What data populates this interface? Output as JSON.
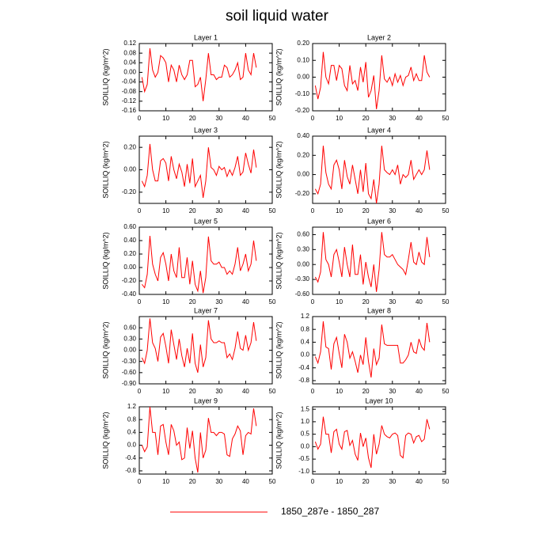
{
  "title": "soil liquid water",
  "legend": {
    "label": "1850_287e - 1850_287",
    "color": "#ff0000"
  },
  "chart_data": [
    {
      "type": "line",
      "title": "Layer 1",
      "ylabel": "SOILLIQ  (kg/m^2)",
      "color": "#ff0000",
      "x": [
        1,
        2,
        3,
        4,
        5,
        6,
        7,
        8,
        9,
        10,
        11,
        12,
        13,
        14,
        15,
        16,
        17,
        18,
        19,
        20,
        21,
        22,
        23,
        24,
        25,
        26,
        27,
        28,
        29,
        30,
        31,
        32,
        33,
        34,
        35,
        36,
        37,
        38,
        39,
        40,
        41,
        42,
        43,
        44
      ],
      "values": [
        -0.02,
        -0.08,
        -0.05,
        0.1,
        0.01,
        -0.02,
        0.0,
        0.07,
        0.06,
        0.04,
        -0.04,
        0.03,
        0.01,
        -0.04,
        0.03,
        -0.01,
        -0.03,
        -0.01,
        0.05,
        0.05,
        -0.06,
        -0.05,
        -0.02,
        -0.12,
        -0.03,
        0.08,
        -0.01,
        -0.01,
        -0.03,
        -0.02,
        -0.02,
        0.03,
        0.02,
        -0.02,
        -0.01,
        0.01,
        0.04,
        -0.03,
        -0.02,
        0.08,
        0.01,
        -0.01,
        0.08,
        0.02
      ],
      "xlim": [
        0,
        50
      ],
      "xticks": [
        0,
        10,
        20,
        30,
        40,
        50
      ],
      "ylim": [
        -0.16,
        0.12
      ],
      "yticks": [
        -0.16,
        -0.12,
        -0.08,
        -0.04,
        {
          "value": 0,
          "label": "0.00"
        },
        0.04,
        0.08,
        0.12
      ]
    },
    {
      "type": "line",
      "title": "Layer 2",
      "ylabel": "SOILLIQ  (kg/m^2)",
      "color": "#ff0000",
      "x": [
        1,
        2,
        3,
        4,
        5,
        6,
        7,
        8,
        9,
        10,
        11,
        12,
        13,
        14,
        15,
        16,
        17,
        18,
        19,
        20,
        21,
        22,
        23,
        24,
        25,
        26,
        27,
        28,
        29,
        30,
        31,
        32,
        33,
        34,
        35,
        36,
        37,
        38,
        39,
        40,
        41,
        42,
        43,
        44
      ],
      "values": [
        -0.05,
        -0.13,
        -0.06,
        0.15,
        0.0,
        -0.04,
        0.07,
        0.07,
        -0.02,
        0.07,
        0.05,
        -0.05,
        -0.08,
        0.07,
        -0.04,
        -0.02,
        -0.08,
        0.06,
        -0.03,
        0.09,
        -0.12,
        -0.08,
        0.01,
        -0.19,
        -0.08,
        0.13,
        -0.01,
        -0.03,
        0.0,
        -0.05,
        0.02,
        -0.03,
        0.01,
        -0.05,
        0.0,
        0.01,
        0.06,
        -0.02,
        0.02,
        -0.02,
        -0.02,
        0.13,
        0.03,
        0.0
      ],
      "xlim": [
        0,
        50
      ],
      "xticks": [
        0,
        10,
        20,
        30,
        40,
        50
      ],
      "ylim": [
        -0.2,
        0.2
      ],
      "yticks": [
        {
          "value": -0.2,
          "label": "-0.20"
        },
        {
          "value": -0.1,
          "label": "-0.10"
        },
        {
          "value": 0,
          "label": "0.00"
        },
        {
          "value": 0.1,
          "label": "0.10"
        },
        {
          "value": 0.2,
          "label": "0.20"
        }
      ]
    },
    {
      "type": "line",
      "title": "Layer 3",
      "ylabel": "SOILLIQ  (kg/m^2)",
      "color": "#ff0000",
      "x": [
        1,
        2,
        3,
        4,
        5,
        6,
        7,
        8,
        9,
        10,
        11,
        12,
        13,
        14,
        15,
        16,
        17,
        18,
        19,
        20,
        21,
        22,
        23,
        24,
        25,
        26,
        27,
        28,
        29,
        30,
        31,
        32,
        33,
        34,
        35,
        36,
        37,
        38,
        39,
        40,
        41,
        42,
        43,
        44
      ],
      "values": [
        -0.1,
        -0.15,
        -0.05,
        0.23,
        0.0,
        -0.1,
        -0.1,
        0.08,
        0.1,
        0.06,
        -0.1,
        0.12,
        0.0,
        -0.08,
        0.05,
        -0.02,
        -0.15,
        0.05,
        -0.12,
        0.1,
        -0.15,
        -0.1,
        -0.05,
        -0.25,
        -0.1,
        0.2,
        0.02,
        0.0,
        -0.05,
        0.03,
        0.0,
        0.02,
        -0.06,
        0.0,
        -0.05,
        0.02,
        0.12,
        -0.05,
        -0.02,
        0.15,
        0.05,
        -0.03,
        0.18,
        0.02
      ],
      "xlim": [
        0,
        50
      ],
      "xticks": [
        0,
        10,
        20,
        30,
        40,
        50
      ],
      "ylim": [
        -0.3,
        0.3
      ],
      "yticks": [
        {
          "value": -0.2,
          "label": "-0.20"
        },
        {
          "value": 0,
          "label": "0.00"
        },
        {
          "value": 0.2,
          "label": "0.20"
        }
      ]
    },
    {
      "type": "line",
      "title": "Layer 4",
      "ylabel": "SOILLIQ  (kg/m^2)",
      "color": "#ff0000",
      "x": [
        1,
        2,
        3,
        4,
        5,
        6,
        7,
        8,
        9,
        10,
        11,
        12,
        13,
        14,
        15,
        16,
        17,
        18,
        19,
        20,
        21,
        22,
        23,
        24,
        25,
        26,
        27,
        28,
        29,
        30,
        31,
        32,
        33,
        34,
        35,
        36,
        37,
        38,
        39,
        40,
        41,
        42,
        43,
        44
      ],
      "values": [
        -0.15,
        -0.2,
        -0.1,
        0.3,
        0.02,
        -0.1,
        -0.15,
        0.1,
        0.15,
        0.05,
        -0.15,
        0.15,
        -0.02,
        -0.1,
        0.1,
        -0.05,
        -0.2,
        0.05,
        -0.18,
        0.12,
        -0.2,
        -0.25,
        -0.05,
        -0.3,
        -0.1,
        0.3,
        0.05,
        0.02,
        0.0,
        0.05,
        0.0,
        0.1,
        -0.1,
        0.0,
        -0.03,
        0.0,
        0.15,
        -0.05,
        0.0,
        0.05,
        0.0,
        0.05,
        0.25,
        0.05
      ],
      "xlim": [
        0,
        50
      ],
      "xticks": [
        0,
        10,
        20,
        30,
        40,
        50
      ],
      "ylim": [
        -0.3,
        0.4
      ],
      "yticks": [
        {
          "value": -0.2,
          "label": "-0.20"
        },
        {
          "value": 0,
          "label": "0.00"
        },
        {
          "value": 0.2,
          "label": "0.20"
        },
        {
          "value": 0.4,
          "label": "0.40"
        }
      ]
    },
    {
      "type": "line",
      "title": "Layer 5",
      "ylabel": "SOILLIQ  (kg/m^2)",
      "color": "#ff0000",
      "x": [
        1,
        2,
        3,
        4,
        5,
        6,
        7,
        8,
        9,
        10,
        11,
        12,
        13,
        14,
        15,
        16,
        17,
        18,
        19,
        20,
        21,
        22,
        23,
        24,
        25,
        26,
        27,
        28,
        29,
        30,
        31,
        32,
        33,
        34,
        35,
        36,
        37,
        38,
        39,
        40,
        41,
        42,
        43,
        44
      ],
      "values": [
        -0.25,
        -0.3,
        -0.1,
        0.47,
        0.05,
        -0.1,
        -0.2,
        0.15,
        0.22,
        0.05,
        -0.2,
        0.2,
        -0.05,
        -0.15,
        0.3,
        -0.15,
        -0.15,
        0.15,
        -0.25,
        0.1,
        -0.25,
        -0.35,
        -0.05,
        -0.38,
        -0.15,
        0.46,
        0.1,
        0.05,
        0.05,
        0.08,
        0.0,
        0.0,
        -0.1,
        -0.05,
        -0.1,
        0.05,
        0.3,
        -0.05,
        0.05,
        0.2,
        -0.05,
        0.05,
        0.4,
        0.1
      ],
      "xlim": [
        0,
        50
      ],
      "xticks": [
        0,
        10,
        20,
        30,
        40,
        50
      ],
      "ylim": [
        -0.4,
        0.6
      ],
      "yticks": [
        {
          "value": -0.4,
          "label": "-0.40"
        },
        {
          "value": -0.2,
          "label": "-0.20"
        },
        {
          "value": 0,
          "label": "0.00"
        },
        {
          "value": 0.2,
          "label": "0.20"
        },
        {
          "value": 0.4,
          "label": "0.40"
        },
        {
          "value": 0.6,
          "label": "0.60"
        }
      ]
    },
    {
      "type": "line",
      "title": "Layer 6",
      "ylabel": "SOILLIQ  (kg/m^2)",
      "color": "#ff0000",
      "x": [
        1,
        2,
        3,
        4,
        5,
        6,
        7,
        8,
        9,
        10,
        11,
        12,
        13,
        14,
        15,
        16,
        17,
        18,
        19,
        20,
        21,
        22,
        23,
        24,
        25,
        26,
        27,
        28,
        29,
        30,
        31,
        32,
        33,
        34,
        35,
        36,
        37,
        38,
        39,
        40,
        41,
        42,
        43,
        44
      ],
      "values": [
        -0.25,
        -0.35,
        -0.15,
        0.65,
        0.1,
        0.0,
        -0.25,
        0.2,
        0.3,
        0.05,
        -0.25,
        0.35,
        0.0,
        -0.25,
        0.4,
        -0.2,
        -0.2,
        0.2,
        -0.4,
        0.05,
        -0.25,
        -0.45,
        0.0,
        -0.55,
        -0.1,
        0.65,
        0.2,
        0.15,
        0.15,
        0.2,
        0.1,
        0.0,
        -0.05,
        -0.1,
        -0.2,
        0.1,
        0.45,
        0.05,
        0.0,
        0.25,
        0.05,
        0.0,
        0.55,
        0.15
      ],
      "xlim": [
        0,
        50
      ],
      "xticks": [
        0,
        10,
        20,
        30,
        40,
        50
      ],
      "ylim": [
        -0.6,
        0.75
      ],
      "yticks": [
        {
          "value": -0.6,
          "label": "-0.60"
        },
        {
          "value": -0.3,
          "label": "-0.30"
        },
        {
          "value": 0,
          "label": "0.00"
        },
        {
          "value": 0.3,
          "label": "0.30"
        },
        {
          "value": 0.6,
          "label": "0.60"
        }
      ]
    },
    {
      "type": "line",
      "title": "Layer 7",
      "ylabel": "SOILLIQ  (kg/m^2)",
      "color": "#ff0000",
      "x": [
        1,
        2,
        3,
        4,
        5,
        6,
        7,
        8,
        9,
        10,
        11,
        12,
        13,
        14,
        15,
        16,
        17,
        18,
        19,
        20,
        21,
        22,
        23,
        24,
        25,
        26,
        27,
        28,
        29,
        30,
        31,
        32,
        33,
        34,
        35,
        36,
        37,
        38,
        39,
        40,
        41,
        42,
        43,
        44
      ],
      "values": [
        -0.2,
        -0.35,
        0.0,
        0.85,
        0.2,
        0.05,
        -0.3,
        0.35,
        0.45,
        0.1,
        -0.35,
        0.55,
        0.15,
        -0.25,
        0.3,
        -0.15,
        -0.45,
        0.05,
        -0.35,
        0.45,
        -0.35,
        -0.6,
        0.15,
        -0.45,
        -0.2,
        0.8,
        0.3,
        0.2,
        0.2,
        0.25,
        0.2,
        0.2,
        -0.2,
        -0.1,
        -0.25,
        0.05,
        0.5,
        0.05,
        0.0,
        0.4,
        0.0,
        0.2,
        0.75,
        0.25
      ],
      "xlim": [
        0,
        50
      ],
      "xticks": [
        0,
        10,
        20,
        30,
        40,
        50
      ],
      "ylim": [
        -0.9,
        0.9
      ],
      "yticks": [
        {
          "value": -0.9,
          "label": "-0.90"
        },
        {
          "value": -0.6,
          "label": "-0.60"
        },
        {
          "value": -0.3,
          "label": "-0.30"
        },
        {
          "value": 0,
          "label": "0.00"
        },
        {
          "value": 0.3,
          "label": "0.30"
        },
        {
          "value": 0.6,
          "label": "0.60"
        }
      ]
    },
    {
      "type": "line",
      "title": "Layer 8",
      "ylabel": "SOILLIQ  (kg/m^2)",
      "color": "#ff0000",
      "x": [
        1,
        2,
        3,
        4,
        5,
        6,
        7,
        8,
        9,
        10,
        11,
        12,
        13,
        14,
        15,
        16,
        17,
        18,
        19,
        20,
        21,
        22,
        23,
        24,
        25,
        26,
        27,
        28,
        29,
        30,
        31,
        32,
        33,
        34,
        35,
        36,
        37,
        38,
        39,
        40,
        41,
        42,
        43,
        44
      ],
      "values": [
        -0.05,
        -0.25,
        0.1,
        1.05,
        0.25,
        0.2,
        -0.45,
        0.35,
        0.55,
        0.05,
        -0.4,
        0.65,
        0.4,
        -0.1,
        0.1,
        -0.2,
        -0.55,
        0.0,
        -0.3,
        0.55,
        -0.2,
        -0.7,
        0.2,
        -0.3,
        -0.1,
        0.95,
        0.35,
        0.3,
        0.3,
        0.3,
        0.3,
        0.3,
        -0.25,
        -0.25,
        -0.15,
        0.0,
        0.4,
        0.1,
        0.05,
        0.5,
        0.25,
        0.15,
        1.0,
        0.4
      ],
      "xlim": [
        0,
        50
      ],
      "xticks": [
        0,
        10,
        20,
        30,
        40,
        50
      ],
      "ylim": [
        -0.9,
        1.2
      ],
      "yticks": [
        -0.8,
        -0.4,
        {
          "value": 0,
          "label": "0.0"
        },
        0.4,
        0.8,
        1.2
      ]
    },
    {
      "type": "line",
      "title": "Layer 9",
      "ylabel": "SOILLIQ  (kg/m^2)",
      "color": "#ff0000",
      "x": [
        1,
        2,
        3,
        4,
        5,
        6,
        7,
        8,
        9,
        10,
        11,
        12,
        13,
        14,
        15,
        16,
        17,
        18,
        19,
        20,
        21,
        22,
        23,
        24,
        25,
        26,
        27,
        28,
        29,
        30,
        31,
        32,
        33,
        34,
        35,
        36,
        37,
        38,
        39,
        40,
        41,
        42,
        43,
        44
      ],
      "values": [
        0.0,
        -0.2,
        -0.05,
        1.2,
        0.4,
        0.4,
        -0.3,
        0.6,
        0.65,
        0.1,
        -0.3,
        0.65,
        0.45,
        0.0,
        0.1,
        -0.45,
        -0.4,
        0.55,
        -0.1,
        0.45,
        -0.4,
        -0.85,
        0.4,
        -0.4,
        -0.15,
        0.85,
        0.4,
        0.4,
        0.3,
        0.4,
        0.4,
        0.35,
        -0.3,
        -0.35,
        0.2,
        0.35,
        0.6,
        0.45,
        -0.3,
        0.3,
        0.4,
        0.35,
        1.15,
        0.6
      ],
      "xlim": [
        0,
        50
      ],
      "xticks": [
        0,
        10,
        20,
        30,
        40,
        50
      ],
      "ylim": [
        -0.9,
        1.2
      ],
      "yticks": [
        -0.8,
        -0.4,
        {
          "value": 0,
          "label": "0.0"
        },
        0.4,
        0.8,
        1.2
      ]
    },
    {
      "type": "line",
      "title": "Layer 10",
      "ylabel": "SOILLIQ  (kg/m^2)",
      "color": "#ff0000",
      "x": [
        1,
        2,
        3,
        4,
        5,
        6,
        7,
        8,
        9,
        10,
        11,
        12,
        13,
        14,
        15,
        16,
        17,
        18,
        19,
        20,
        21,
        22,
        23,
        24,
        25,
        26,
        27,
        28,
        29,
        30,
        31,
        32,
        33,
        34,
        35,
        36,
        37,
        38,
        39,
        40,
        41,
        42,
        43,
        44
      ],
      "values": [
        0.2,
        -0.1,
        0.1,
        1.2,
        0.5,
        0.5,
        -0.25,
        0.6,
        0.7,
        0.1,
        -0.1,
        0.6,
        0.65,
        0.05,
        0.25,
        -0.3,
        -0.55,
        0.55,
        0.0,
        0.35,
        -0.45,
        -0.85,
        0.5,
        -0.3,
        0.1,
        0.85,
        0.5,
        0.4,
        0.35,
        0.5,
        0.55,
        0.45,
        -0.35,
        -0.45,
        0.45,
        0.55,
        0.5,
        0.15,
        0.4,
        0.45,
        0.2,
        0.3,
        1.1,
        0.7
      ],
      "xlim": [
        0,
        50
      ],
      "xticks": [
        0,
        10,
        20,
        30,
        40,
        50
      ],
      "ylim": [
        -1.1,
        1.6
      ],
      "yticks": [
        {
          "value": -1,
          "label": "-1.0"
        },
        -0.5,
        {
          "value": 0,
          "label": "0.0"
        },
        0.5,
        {
          "value": 1,
          "label": "1.0"
        },
        1.5
      ]
    }
  ]
}
